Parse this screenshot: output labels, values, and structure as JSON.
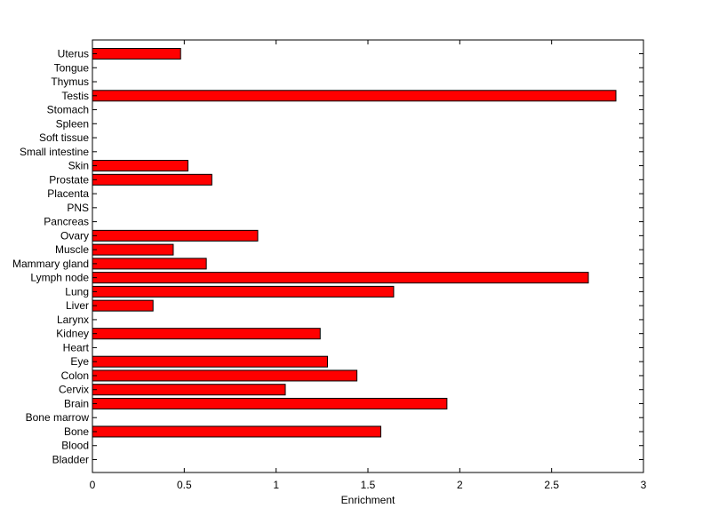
{
  "chart_data": {
    "type": "bar",
    "orientation": "horizontal",
    "title": "",
    "xlabel": "Enrichment",
    "ylabel": "",
    "xlim": [
      0,
      3
    ],
    "xticks": [
      "0",
      "0.5",
      "1",
      "1.5",
      "2",
      "2.5",
      "3"
    ],
    "grid": false,
    "bar_color": "#ff0000",
    "categories": [
      "Bladder",
      "Blood",
      "Bone",
      "Bone marrow",
      "Brain",
      "Cervix",
      "Colon",
      "Eye",
      "Heart",
      "Kidney",
      "Larynx",
      "Liver",
      "Lung",
      "Lymph node",
      "Mammary gland",
      "Muscle",
      "Ovary",
      "Pancreas",
      "PNS",
      "Placenta",
      "Prostate",
      "Skin",
      "Small intestine",
      "Soft tissue",
      "Spleen",
      "Stomach",
      "Testis",
      "Thymus",
      "Tongue",
      "Uterus"
    ],
    "values": [
      0,
      0,
      1.57,
      0,
      1.93,
      1.05,
      1.44,
      1.28,
      0,
      1.24,
      0,
      0.33,
      1.64,
      2.7,
      0.62,
      0.44,
      0.9,
      0,
      0,
      0,
      0.65,
      0.52,
      0,
      0,
      0,
      0,
      2.85,
      0,
      0,
      0.48
    ]
  }
}
